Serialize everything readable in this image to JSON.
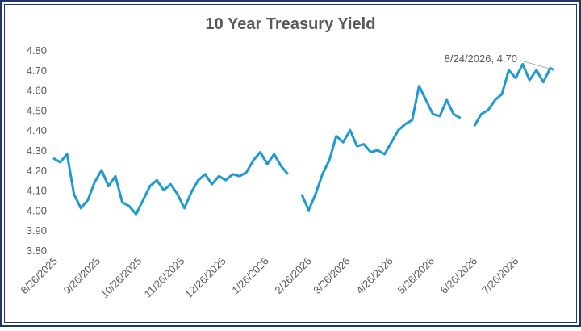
{
  "chart_data": {
    "type": "line",
    "title": "10 Year Treasury Yield",
    "annotation": "8/24/2026,  4.70",
    "color": "#1e9ad0",
    "grid": false,
    "xlim": [
      "8/26/2025",
      "8/24/2026"
    ],
    "xticks": [
      "8/26/2025",
      "9/26/2025",
      "10/26/2025",
      "11/26/2025",
      "12/26/2025",
      "1/26/2026",
      "2/26/2026",
      "3/26/2026",
      "4/26/2026",
      "5/26/2026",
      "6/26/2026",
      "7/26/2026"
    ],
    "ylim": [
      3.8,
      4.8
    ],
    "yticks": [
      {
        "value": 3.8,
        "label": "3.80"
      },
      {
        "value": 3.9,
        "label": "3.90"
      },
      {
        "value": 4.0,
        "label": "4.00"
      },
      {
        "value": 4.1,
        "label": "4.10"
      },
      {
        "value": 4.2,
        "label": "4.20"
      },
      {
        "value": 4.3,
        "label": "4.30"
      },
      {
        "value": 4.4,
        "label": "4.40"
      },
      {
        "value": 4.5,
        "label": "4.50"
      },
      {
        "value": 4.6,
        "label": "4.60"
      },
      {
        "value": 4.7,
        "label": "4.70"
      },
      {
        "value": 4.8,
        "label": "4.80"
      }
    ],
    "x": [
      "8/26/2025",
      "8/31/2025",
      "9/5/2025",
      "9/10/2025",
      "9/15/2025",
      "9/20/2025",
      "9/25/2025",
      "9/30/2025",
      "10/5/2025",
      "10/10/2025",
      "10/15/2025",
      "10/20/2025",
      "10/25/2025",
      "10/30/2025",
      "11/4/2025",
      "11/9/2025",
      "11/14/2025",
      "11/19/2025",
      "11/24/2025",
      "11/29/2025",
      "12/4/2025",
      "12/9/2025",
      "12/14/2025",
      "12/19/2025",
      "12/24/2025",
      "12/29/2025",
      "1/3/2026",
      "1/8/2026",
      "1/13/2026",
      "1/18/2026",
      "1/23/2026",
      "1/28/2026",
      "2/2/2026",
      "2/7/2026",
      "2/12/2026",
      "2/17/2026",
      "2/22/2026",
      "2/27/2026",
      "3/4/2026",
      "3/9/2026",
      "3/14/2026",
      "3/19/2026",
      "3/24/2026",
      "3/29/2026",
      "4/3/2026",
      "4/8/2026",
      "4/13/2026",
      "4/18/2026",
      "4/23/2026",
      "4/28/2026",
      "5/3/2026",
      "5/8/2026",
      "5/13/2026",
      "5/18/2026",
      "5/23/2026",
      "5/28/2026",
      "6/2/2026",
      "6/7/2026",
      "6/12/2026",
      "6/17/2026",
      "6/22/2026",
      "6/27/2026",
      "7/2/2026",
      "7/7/2026",
      "7/12/2026",
      "7/17/2026",
      "7/22/2026",
      "7/27/2026",
      "8/1/2026",
      "8/6/2026",
      "8/11/2026",
      "8/16/2026",
      "8/21/2026",
      "8/24/2026"
    ],
    "values": [
      4.26,
      4.24,
      4.28,
      4.08,
      4.01,
      4.05,
      4.14,
      4.2,
      4.12,
      4.17,
      4.04,
      4.02,
      3.98,
      4.05,
      4.12,
      4.15,
      4.1,
      4.13,
      4.08,
      4.01,
      4.09,
      4.15,
      4.18,
      4.13,
      4.17,
      4.15,
      4.18,
      4.17,
      4.19,
      4.25,
      4.29,
      4.23,
      4.28,
      4.22,
      4.18,
      null,
      4.08,
      4.0,
      4.08,
      4.18,
      4.25,
      4.37,
      4.34,
      4.4,
      4.32,
      4.33,
      4.29,
      4.3,
      4.28,
      4.34,
      4.4,
      4.43,
      4.45,
      4.62,
      4.55,
      4.48,
      4.47,
      4.55,
      4.48,
      4.46,
      null,
      4.42,
      4.48,
      4.5,
      4.55,
      4.58,
      4.7,
      4.66,
      4.73,
      4.65,
      4.7,
      4.64,
      4.71,
      4.7
    ]
  }
}
